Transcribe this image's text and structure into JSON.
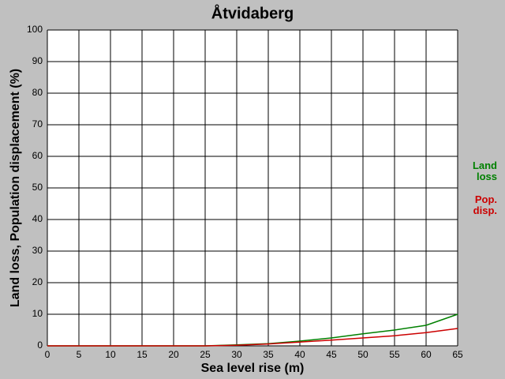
{
  "chart_data": {
    "type": "line",
    "title": "Åtvidaberg",
    "x_label": "Sea level rise (m)",
    "y_label": "Land loss, Population displacement (%)",
    "x": [
      0,
      5,
      10,
      15,
      20,
      25,
      30,
      35,
      40,
      45,
      50,
      55,
      60,
      65
    ],
    "series": [
      {
        "name": "Land loss",
        "color": "#008000",
        "values": [
          0,
          0,
          0,
          0,
          0,
          0,
          0.3,
          0.7,
          1.5,
          2.5,
          3.8,
          5,
          6.5,
          10
        ]
      },
      {
        "name": "Pop. disp.",
        "color": "#cc0000",
        "values": [
          0,
          0,
          0,
          0,
          0,
          0,
          0.2,
          0.6,
          1.2,
          1.8,
          2.5,
          3.2,
          4.2,
          5.5
        ]
      }
    ],
    "xlim": [
      0,
      65
    ],
    "xticks": [
      0,
      5,
      10,
      15,
      20,
      25,
      30,
      35,
      40,
      45,
      50,
      55,
      60,
      65
    ],
    "ylim": [
      0,
      100
    ],
    "yticks": [
      0,
      10,
      20,
      30,
      40,
      50,
      60,
      70,
      80,
      90,
      100
    ],
    "grid": true
  }
}
